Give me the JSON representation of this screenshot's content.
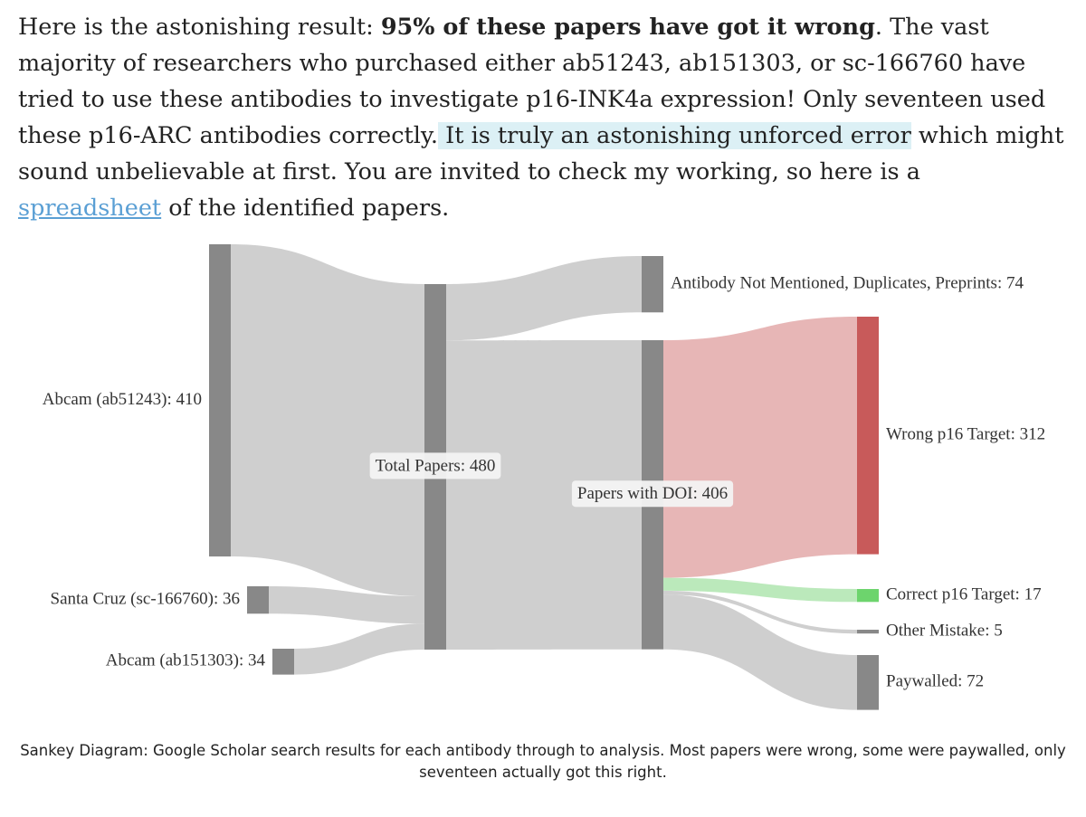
{
  "paragraph": {
    "t1": "Here is the astonishing result: ",
    "bold": "95% of these papers have got it wrong",
    "t2": ". The vast majority of researchers who purchased either ab51243, ab151303, or sc-166760 have tried to use these antibodies to investigate p16-INK4a expression! Only seventeen used these p16-ARC antibodies correctly.",
    "highlight": " It is truly an astonishing unforced error",
    "t3": " which might sound unbelievable at first. You are invited to check my working, so here is a ",
    "link": "spreadsheet",
    "t4": " of the identified papers."
  },
  "diagram": {
    "type": "sankey",
    "nodes": [
      {
        "id": "ab51243",
        "label": "Abcam (ab51243): 410",
        "value": 410
      },
      {
        "id": "sc166760",
        "label": "Santa Cruz (sc-166760): 36",
        "value": 36
      },
      {
        "id": "ab151303",
        "label": "Abcam (ab151303): 34",
        "value": 34
      },
      {
        "id": "total",
        "label": "Total Papers: 480",
        "value": 480
      },
      {
        "id": "excluded",
        "label": "Antibody Not Mentioned, Duplicates, Preprints: 74",
        "value": 74
      },
      {
        "id": "doi",
        "label": "Papers with DOI: 406",
        "value": 406
      },
      {
        "id": "wrong",
        "label": "Wrong p16 Target: 312",
        "value": 312
      },
      {
        "id": "correct",
        "label": "Correct p16 Target: 17",
        "value": 17
      },
      {
        "id": "other",
        "label": "Other Mistake: 5",
        "value": 5
      },
      {
        "id": "paywalled",
        "label": "Paywalled: 72",
        "value": 72
      }
    ],
    "links": [
      {
        "source": "ab51243",
        "target": "total",
        "value": 410
      },
      {
        "source": "sc166760",
        "target": "total",
        "value": 36
      },
      {
        "source": "ab151303",
        "target": "total",
        "value": 34
      },
      {
        "source": "total",
        "target": "excluded",
        "value": 74
      },
      {
        "source": "total",
        "target": "doi",
        "value": 406
      },
      {
        "source": "doi",
        "target": "wrong",
        "value": 312
      },
      {
        "source": "doi",
        "target": "correct",
        "value": 17
      },
      {
        "source": "doi",
        "target": "other",
        "value": 5
      },
      {
        "source": "doi",
        "target": "paywalled",
        "value": 72
      }
    ],
    "colors": {
      "node": "#888888",
      "link": "#cccccc",
      "wrong_node": "#c85a5a",
      "wrong_link": "#e6b2b2",
      "correct_node": "#6dd46d",
      "correct_link": "#b7e8b7",
      "label_bg": "#f3f3f3"
    }
  },
  "caption": "Sankey Diagram: Google Scholar search results for each antibody through to analysis. Most papers were wrong, some were paywalled, only seventeen actually got this right."
}
